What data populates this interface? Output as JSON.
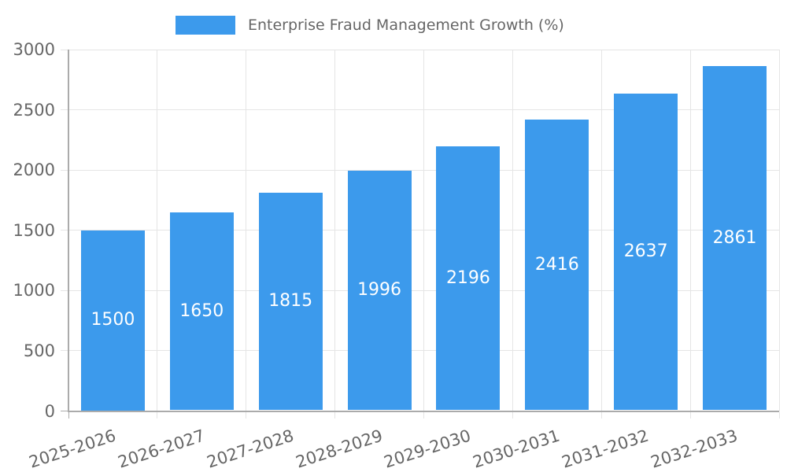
{
  "chart_data": {
    "type": "bar",
    "title": "",
    "series_name": "Enterprise Fraud Management Growth (%)",
    "categories": [
      "2025-2026",
      "2026-2027",
      "2027-2028",
      "2028-2029",
      "2029-2030",
      "2030-2031",
      "2031-2032",
      "2032-2033"
    ],
    "values": [
      1500,
      1650,
      1815,
      1996,
      2196,
      2416,
      2637,
      2861
    ],
    "ylim": [
      0,
      3000
    ],
    "yticks": [
      0,
      500,
      1000,
      1500,
      2000,
      2500,
      3000
    ],
    "grid": true,
    "legend_position": "top-center",
    "value_label_position": "inside-center",
    "x_label_rotation_deg": -18,
    "colors": {
      "bar": "#3c9aec",
      "axis_text": "#666666",
      "grid_line": "#e5e5e5",
      "axis_line": "#ababab",
      "value_label": "#ffffff"
    }
  }
}
